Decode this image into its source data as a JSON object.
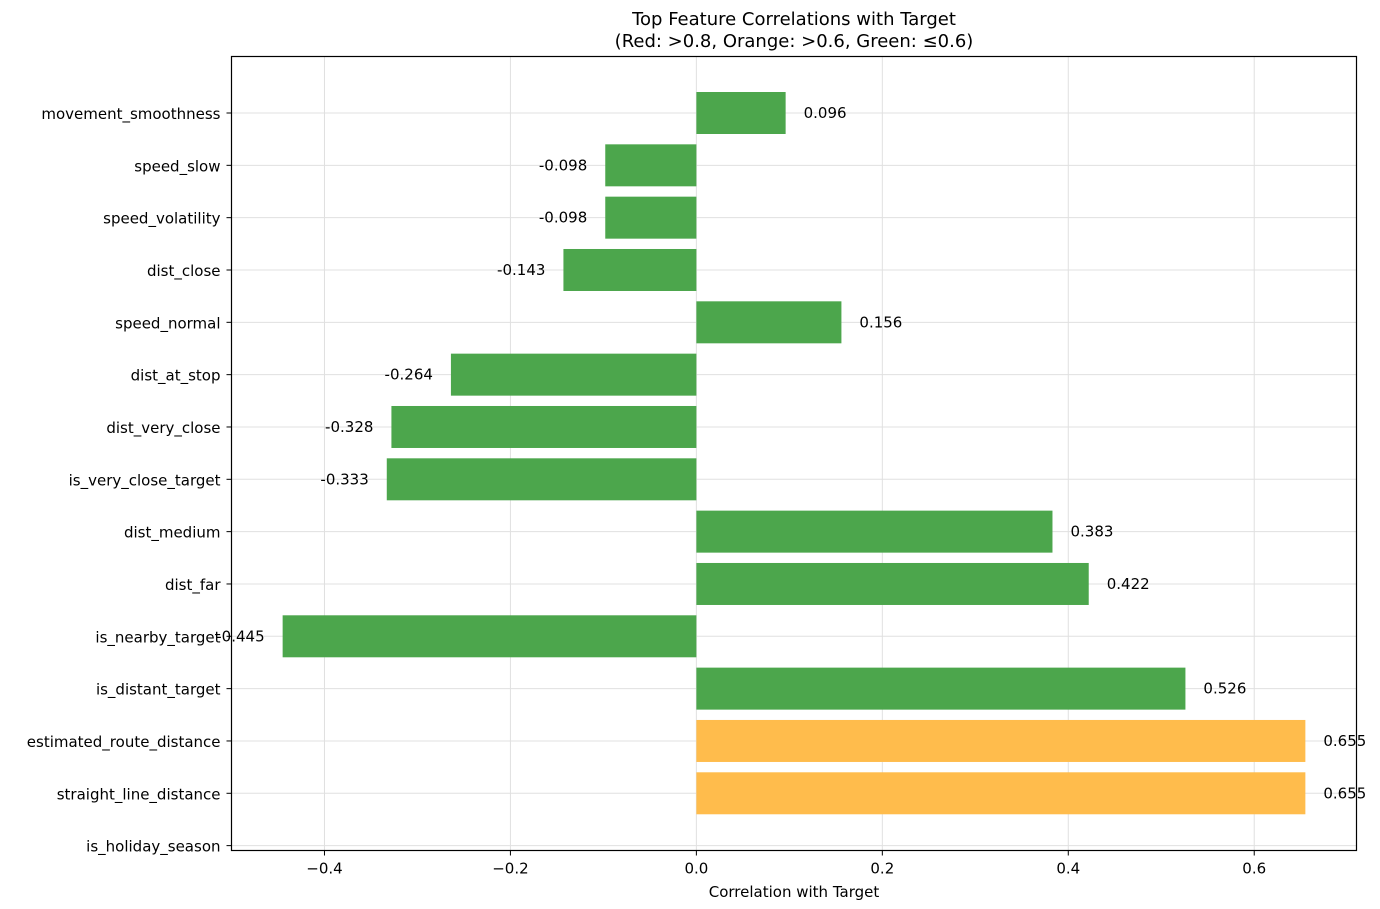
{
  "chart_data": {
    "type": "bar",
    "orientation": "horizontal",
    "title": "Top Feature Correlations with Target",
    "subtitle": "(Red: >0.8, Orange: >0.6, Green: ≤0.6)",
    "xlabel": "Correlation with Target",
    "ylabel": "",
    "xlim": [
      -0.5,
      0.71
    ],
    "xticks": [
      -0.4,
      -0.2,
      0.0,
      0.2,
      0.4,
      0.6
    ],
    "xtick_labels": [
      "−0.4",
      "−0.2",
      "0.0",
      "0.2",
      "0.4",
      "0.6"
    ],
    "grid": true,
    "categories": [
      "movement_smoothness",
      "speed_slow",
      "speed_volatility",
      "dist_close",
      "speed_normal",
      "dist_at_stop",
      "dist_very_close",
      "is_very_close_target",
      "dist_medium",
      "dist_far",
      "is_nearby_target",
      "is_distant_target",
      "estimated_route_distance",
      "straight_line_distance",
      "is_holiday_season"
    ],
    "values": [
      0.096,
      -0.098,
      -0.098,
      -0.143,
      0.156,
      -0.264,
      -0.328,
      -0.333,
      0.383,
      0.422,
      -0.445,
      0.526,
      0.655,
      0.655,
      null
    ],
    "value_labels": [
      "0.096",
      "-0.098",
      "-0.098",
      "-0.143",
      "0.156",
      "-0.264",
      "-0.328",
      "-0.333",
      "0.383",
      "0.422",
      "-0.445",
      "0.526",
      "0.655",
      "0.655",
      ""
    ],
    "colors": {
      "green": "#4ca64c",
      "orange": "#ffbc4c",
      "red": "#ff4c4c"
    },
    "color_thresholds": {
      "red": 0.8,
      "orange": 0.6
    }
  }
}
